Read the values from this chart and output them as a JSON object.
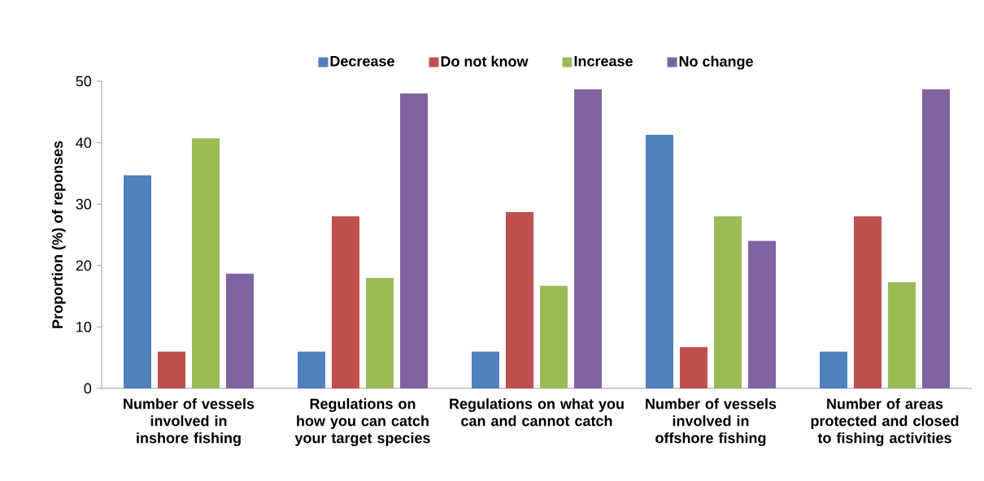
{
  "chart_data": {
    "type": "bar",
    "ylabel": "Proportion (%) of reponses",
    "categories": [
      "Number of vessels involved in inshore fishing",
      "Regulations on how you can catch your target species",
      "Regulations on what you can and cannot catch",
      "Number of vessels involved in offshore fishing",
      "Number of areas protected and closed to fishing activities"
    ],
    "series": [
      {
        "name": "Decrease",
        "color": "#4f81bd",
        "values": [
          34.7,
          6.0,
          6.0,
          41.3,
          6.0
        ]
      },
      {
        "name": "Do not know",
        "color": "#c0504d",
        "values": [
          6.0,
          28.0,
          28.7,
          6.7,
          28.0
        ]
      },
      {
        "name": "Increase",
        "color": "#9bbb59",
        "values": [
          40.7,
          18.0,
          16.7,
          28.0,
          17.3
        ]
      },
      {
        "name": "No change",
        "color": "#8064a2",
        "values": [
          18.7,
          48.0,
          48.7,
          24.0,
          48.7
        ]
      }
    ],
    "ylim": [
      0,
      50
    ],
    "yticks": [
      0,
      10,
      20,
      30,
      40,
      50
    ],
    "grid": false,
    "legend": "top"
  }
}
